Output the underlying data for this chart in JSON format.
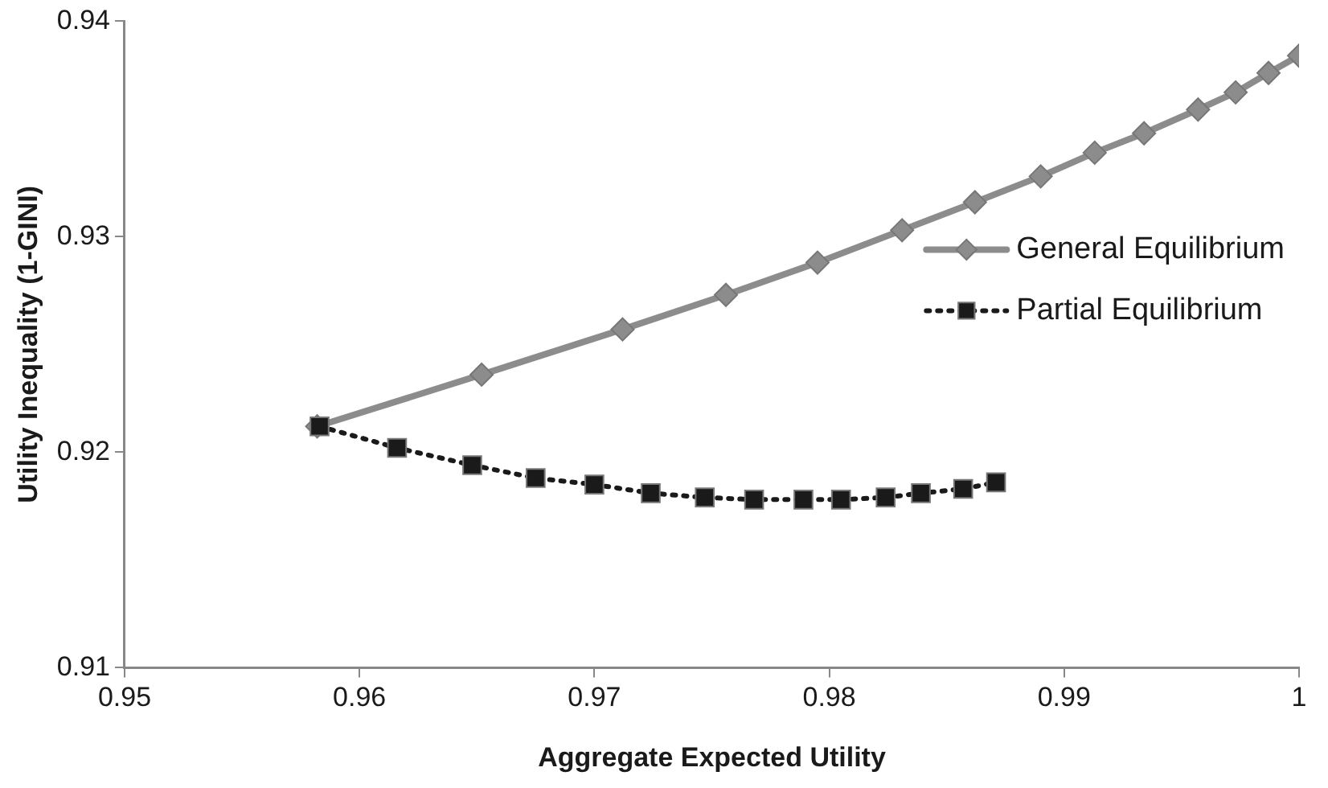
{
  "chart_data": {
    "type": "line",
    "xlabel": "Aggregate Expected Utility",
    "ylabel": "Utility Inequality (1-GINI)",
    "xlim": [
      0.95,
      1
    ],
    "xticks": [
      0.95,
      0.96,
      0.97,
      0.98,
      0.99,
      1
    ],
    "ylim": [
      0.91,
      0.94
    ],
    "yticks": [
      0.91,
      0.92,
      0.93,
      0.94
    ],
    "grid": false,
    "legend": "right",
    "series": [
      {
        "name": "General Equilibrium",
        "color": "#8c8c8c",
        "marker": "diamond",
        "line_style": "solid",
        "x": [
          0.9582,
          0.9652,
          0.9712,
          0.9756,
          0.9795,
          0.9831,
          0.9862,
          0.989,
          0.9913,
          0.9934,
          0.9957,
          0.9973,
          0.9987,
          1.0
        ],
        "values": [
          0.9212,
          0.9236,
          0.9257,
          0.9273,
          0.9288,
          0.9303,
          0.9316,
          0.9328,
          0.9339,
          0.9348,
          0.9359,
          0.9367,
          0.9376,
          0.9384
        ]
      },
      {
        "name": "Partial Equilibrium",
        "color": "#1a1a1a",
        "marker": "square",
        "line_style": "dotted",
        "x": [
          0.9583,
          0.9616,
          0.9648,
          0.9675,
          0.97,
          0.9724,
          0.9747,
          0.9768,
          0.9789,
          0.9805,
          0.9824,
          0.9839,
          0.9857,
          0.9871
        ],
        "values": [
          0.9212,
          0.9202,
          0.9194,
          0.9188,
          0.9185,
          0.9181,
          0.9179,
          0.9178,
          0.9178,
          0.9178,
          0.9179,
          0.9181,
          0.9183,
          0.9186
        ]
      }
    ]
  }
}
